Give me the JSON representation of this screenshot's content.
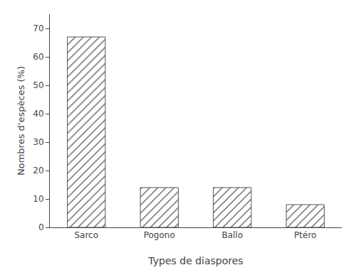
{
  "chart_data": {
    "type": "bar",
    "categories": [
      "Sarco",
      "Pogono",
      "Ballo",
      "Ptéro"
    ],
    "values": [
      67.0,
      14.0,
      14.0,
      8.0
    ],
    "xlabel": "Types de diaspores",
    "ylabel": "Nombres d'espèces (%)",
    "color": "#d8d8d8",
    "ylim": [
      0,
      75
    ],
    "yticks": [
      0,
      10,
      20,
      30,
      40,
      50,
      60,
      70
    ],
    "grid": false
  }
}
